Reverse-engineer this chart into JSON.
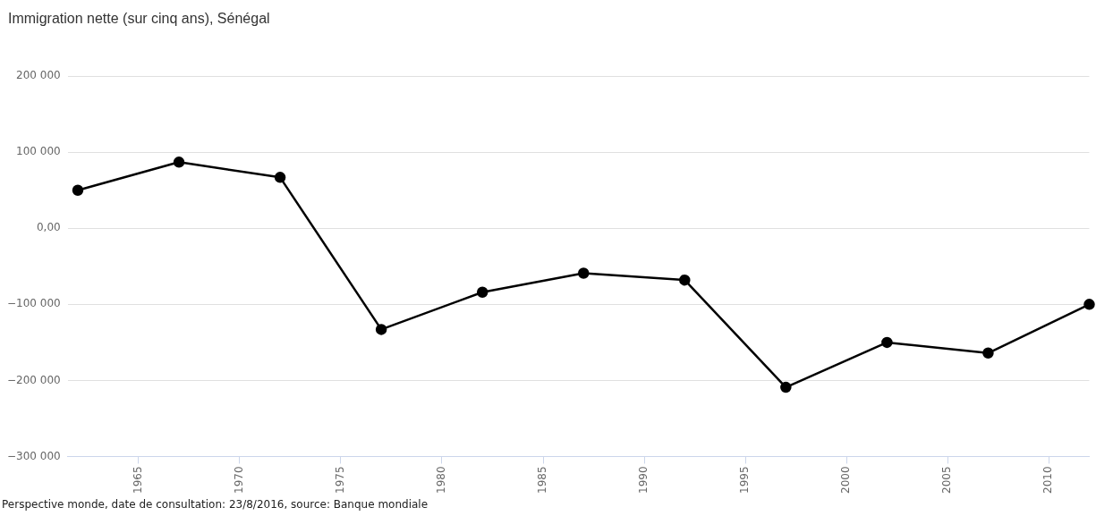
{
  "chart_data": {
    "type": "line",
    "title": "Immigration nette (sur cinq ans), Sénégal",
    "x": [
      1962,
      1967,
      1972,
      1977,
      1982,
      1987,
      1992,
      1997,
      2002,
      2007,
      2012
    ],
    "series": [
      {
        "color": "#000000",
        "values": [
          50000,
          87000,
          67000,
          -133000,
          -84000,
          -59000,
          -68000,
          -209000,
          -150000,
          -164000,
          -100000
        ]
      }
    ],
    "xlim": [
      1961.5,
      2012
    ],
    "xticks": [
      1965,
      1970,
      1975,
      1980,
      1985,
      1990,
      1995,
      2000,
      2005,
      2010
    ],
    "ylim": [
      -300000,
      200000
    ],
    "yticks": [
      {
        "value": -300000,
        "label": "−300 000"
      },
      {
        "value": -200000,
        "label": "−200 000"
      },
      {
        "value": -100000,
        "label": "−100 000"
      },
      {
        "value": 0,
        "label": "0,00"
      },
      {
        "value": 100000,
        "label": "100 000"
      },
      {
        "value": 200000,
        "label": "200 000"
      }
    ],
    "grid": "y",
    "legend": false,
    "marker": "circle",
    "line_style": "solid",
    "annotations": [
      "Perspective monde, date de consultation: 23/8/2016, source: Banque mondiale"
    ]
  }
}
